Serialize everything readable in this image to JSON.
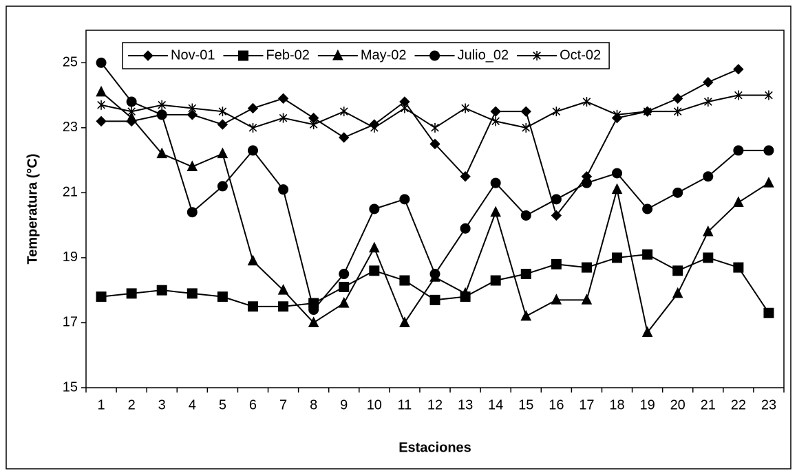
{
  "chart_data": {
    "type": "line",
    "x_label": "Estaciones",
    "y_label": "Temperatura (°C)",
    "categories": [
      "1",
      "2",
      "3",
      "4",
      "5",
      "6",
      "7",
      "8",
      "9",
      "10",
      "11",
      "12",
      "13",
      "14",
      "15",
      "16",
      "17",
      "18",
      "19",
      "20",
      "21",
      "22",
      "23"
    ],
    "ylim": [
      15,
      26
    ],
    "yticks": [
      15,
      17,
      19,
      21,
      23,
      25
    ],
    "legend": "top",
    "series": [
      {
        "name": "Nov-01",
        "color": "#000000",
        "marker": "diamond",
        "values": [
          23.2,
          23.2,
          23.4,
          23.4,
          23.1,
          23.6,
          23.9,
          23.3,
          22.7,
          23.1,
          23.8,
          22.5,
          21.5,
          23.5,
          23.5,
          20.3,
          21.5,
          23.3,
          23.5,
          23.9,
          24.4,
          24.8,
          null
        ]
      },
      {
        "name": "Feb-02",
        "color": "#000000",
        "marker": "square",
        "values": [
          17.8,
          17.9,
          18.0,
          17.9,
          17.8,
          17.5,
          17.5,
          17.6,
          18.1,
          18.6,
          18.3,
          17.7,
          17.8,
          18.3,
          18.5,
          18.8,
          18.7,
          19.0,
          19.1,
          18.6,
          19.0,
          18.7,
          17.3
        ]
      },
      {
        "name": "May-02",
        "color": "#000000",
        "marker": "triangle",
        "values": [
          24.1,
          23.3,
          22.2,
          21.8,
          22.2,
          18.9,
          18.0,
          17.0,
          17.6,
          19.3,
          17.0,
          18.4,
          17.9,
          20.4,
          17.2,
          17.7,
          17.7,
          21.1,
          16.7,
          17.9,
          19.8,
          20.7,
          21.3
        ]
      },
      {
        "name": "Julio_02",
        "color": "#000000",
        "marker": "circle",
        "values": [
          25.0,
          23.8,
          23.4,
          20.4,
          21.2,
          22.3,
          21.1,
          17.4,
          18.5,
          20.5,
          20.8,
          18.5,
          19.9,
          21.3,
          20.3,
          20.8,
          21.3,
          21.6,
          20.5,
          21.0,
          21.5,
          22.3,
          22.3
        ]
      },
      {
        "name": "Oct-02",
        "color": "#000000",
        "marker": "star",
        "values": [
          23.7,
          23.5,
          23.7,
          23.6,
          23.5,
          23.0,
          23.3,
          23.1,
          23.5,
          23.0,
          23.6,
          23.0,
          23.6,
          23.2,
          23.0,
          23.5,
          23.8,
          23.4,
          23.5,
          23.5,
          23.8,
          24.0,
          24.0
        ]
      }
    ]
  }
}
